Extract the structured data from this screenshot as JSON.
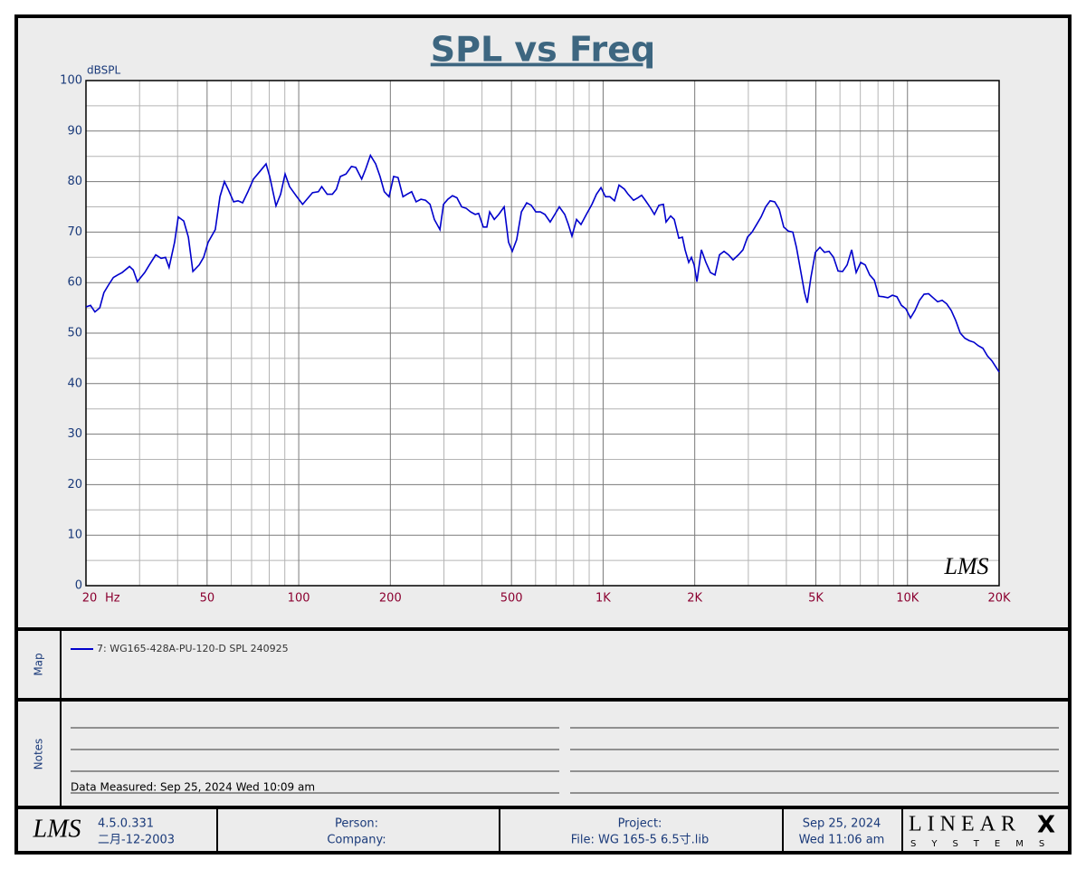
{
  "chart_data": {
    "type": "line",
    "title": "SPL vs Freq",
    "y_label": "dBSPL",
    "x_unit": "Hz",
    "x_scale": "log",
    "grid": true,
    "xlim": [
      20,
      20000
    ],
    "ylim": [
      0,
      100
    ],
    "xticks": [
      20,
      50,
      100,
      200,
      500,
      {
        "value": 1000,
        "label": "1K"
      },
      {
        "value": 2000,
        "label": "2K"
      },
      {
        "value": 5000,
        "label": "5K"
      },
      {
        "value": 10000,
        "label": "10K"
      },
      {
        "value": 20000,
        "label": "20K"
      }
    ],
    "yticks": [
      0,
      10,
      20,
      30,
      40,
      50,
      60,
      70,
      80,
      90,
      100
    ],
    "x_grid": [
      30,
      40,
      60,
      70,
      80,
      90,
      300,
      400,
      600,
      700,
      800,
      900,
      3000,
      4000,
      6000,
      7000,
      8000,
      9000
    ],
    "y_grid": [
      5,
      15,
      25,
      35,
      45,
      55,
      65,
      75,
      85,
      95
    ],
    "x": [
      20,
      20.7,
      21.4,
      22.2,
      22.9,
      23.7,
      24.6,
      25.4,
      26.3,
      27.8,
      28.6,
      29.5,
      31.2,
      32.3,
      33.9,
      35.3,
      36.5,
      37.5,
      39.1,
      40.2,
      41.9,
      43.4,
      44.9,
      47.1,
      48.7,
      50.4,
      53.2,
      55.1,
      57.0,
      58.6,
      61.1,
      63.2,
      65.4,
      68.1,
      71.0,
      74.5,
      78.1,
      80.3,
      84.2,
      87.2,
      90.2,
      93.3,
      98.6,
      103,
      111,
      116,
      119,
      124,
      129,
      133,
      137,
      143,
      149,
      154,
      161,
      166,
      172,
      179,
      185,
      191,
      198,
      205,
      212,
      220,
      227,
      235,
      243,
      252,
      261,
      270,
      279,
      291,
      299,
      309,
      320,
      331,
      343,
      355,
      367,
      380,
      390,
      404,
      415,
      424,
      439,
      454,
      473,
      489,
      503,
      520,
      539,
      561,
      581,
      601,
      622,
      644,
      670,
      694,
      718,
      748,
      769,
      790,
      818,
      846,
      881,
      919,
      951,
      984,
      1018,
      1053,
      1090,
      1128,
      1175,
      1208,
      1259,
      1302,
      1338,
      1376,
      1424,
      1474,
      1525,
      1578,
      1610,
      1667,
      1713,
      1773,
      1822,
      1859,
      1911,
      1951,
      1991,
      2033,
      2103,
      2176,
      2252,
      2331,
      2412,
      2496,
      2582,
      2673,
      2784,
      2881,
      2982,
      3086,
      3193,
      3304,
      3420,
      3538,
      3662,
      3790,
      3921,
      4058,
      4200,
      4316,
      4467,
      4590,
      4685,
      4815,
      4983,
      5157,
      5337,
      5523,
      5715,
      5915,
      6120,
      6334,
      6554,
      6782,
      7019,
      7264,
      7516,
      7778,
      8050,
      8329,
      8619,
      8920,
      9231,
      9552,
      9883,
      10230,
      10585,
      10952,
      11335,
      11729,
      12139,
      12560,
      12998,
      13452,
      13919,
      14404,
      14907,
      15427,
      15962,
      16520,
      17097,
      17690,
      18306,
      18947,
      20000
    ],
    "series": [
      {
        "name": "7: WG165-428A-PU-120-D SPL 240925",
        "color": "#0000cc",
        "values": [
          55.2,
          55.5,
          54.2,
          55,
          58,
          59.5,
          61,
          61.5,
          62,
          63.2,
          62.5,
          60.2,
          62,
          63.5,
          65.5,
          64.8,
          65,
          63,
          68,
          73,
          72.2,
          69,
          62.2,
          63.5,
          65,
          68,
          70.5,
          77,
          80,
          78.5,
          76,
          76.2,
          75.8,
          78,
          80.5,
          82,
          83.5,
          81,
          75.2,
          77.5,
          81.5,
          79,
          77,
          75.5,
          77.8,
          78,
          79,
          77.5,
          77.5,
          78.5,
          81,
          81.5,
          83,
          82.8,
          80.5,
          82.5,
          85.2,
          83.5,
          81,
          78,
          77,
          81,
          80.8,
          77,
          77.5,
          78,
          76,
          76.5,
          76.3,
          75.5,
          72.5,
          70.5,
          75.5,
          76.5,
          77.2,
          76.8,
          75,
          74.7,
          74,
          73.5,
          73.7,
          71,
          71,
          74,
          72.5,
          73.5,
          75,
          68,
          66.2,
          68.5,
          74,
          75.8,
          75.3,
          74,
          74,
          73.5,
          72,
          73.5,
          75,
          73.5,
          71.5,
          69.2,
          72.5,
          71.5,
          73.5,
          75.5,
          77.5,
          78.8,
          77,
          77,
          76.2,
          79.3,
          78.5,
          77.5,
          76.3,
          76.8,
          77.3,
          76.3,
          75,
          73.5,
          75.3,
          75.5,
          72,
          73.2,
          72.5,
          68.8,
          69,
          66.5,
          64,
          65,
          63.5,
          60.2,
          66.5,
          64,
          62,
          61.5,
          65.5,
          66.2,
          65.5,
          64.5,
          65.5,
          66.5,
          69,
          70,
          71.5,
          73,
          75,
          76.2,
          76,
          74.5,
          71,
          70.2,
          70,
          67,
          62,
          58,
          56,
          61,
          66,
          67,
          66,
          66.2,
          65,
          62.3,
          62.2,
          63.5,
          66.5,
          62,
          64,
          63.5,
          61.5,
          60.5,
          57.3,
          57.2,
          57,
          57.5,
          57.2,
          55.5,
          54.8,
          53,
          54.5,
          56.5,
          57.7,
          57.8,
          57,
          56.2,
          56.5,
          55.8,
          54.5,
          52.5,
          50,
          49,
          48.5,
          48.2,
          47.5,
          47,
          45.5,
          44.5,
          42.3
        ]
      }
    ],
    "watermark": "LMS"
  },
  "map": {
    "label": "Map"
  },
  "notes": {
    "label": "Notes",
    "measured": "Data Measured: Sep 25, 2024  Wed 10:09 am"
  },
  "footer": {
    "logo": "LMS",
    "version": "4.5.0.331",
    "version_date": "二月-12-2003",
    "person": "Person:",
    "company": "Company:",
    "project": "Project:",
    "file": "File: WG 165-5 6.5寸.lib",
    "date": "Sep 25, 2024",
    "time": "Wed 11:06 am",
    "brand": "LINEAR",
    "brand_mark": "X",
    "brand_sub": "SYSTEMS"
  }
}
